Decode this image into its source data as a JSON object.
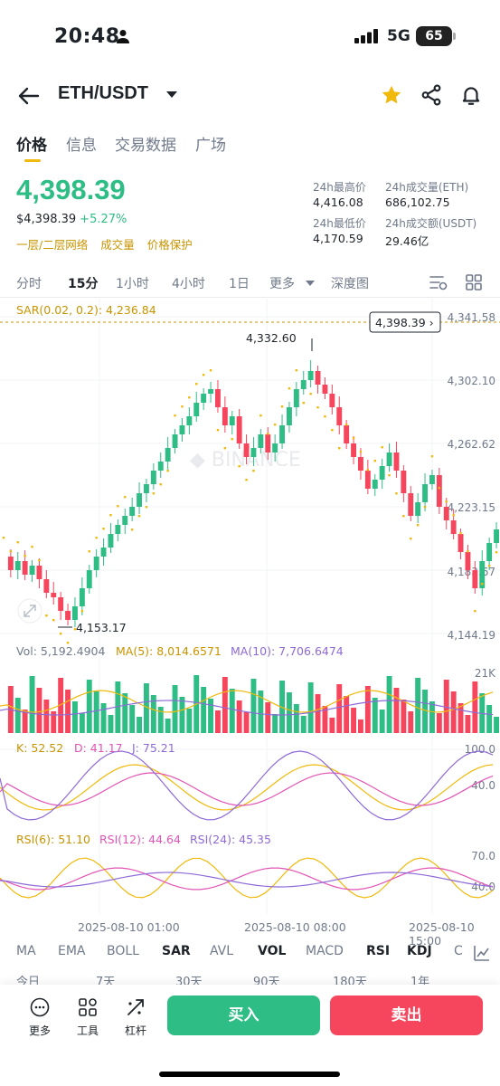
{
  "status": {
    "time": "20:48",
    "network": "5G",
    "battery": "65"
  },
  "nav": {
    "pair": "ETH/USDT"
  },
  "tabs": [
    "价格",
    "信息",
    "交易数据",
    "广场"
  ],
  "price": {
    "last": "4,398.39",
    "usd": "$4,398.39",
    "change": "+5.27%",
    "tags": [
      "一层/二层网络",
      "成交量",
      "价格保护"
    ]
  },
  "stats": {
    "high_label": "24h最高价",
    "high": "4,416.08",
    "low_label": "24h最低价",
    "low": "4,170.59",
    "vol_eth_label": "24h成交量(ETH)",
    "vol_eth": "686,102.75",
    "vol_usdt_label": "24h成交额(USDT)",
    "vol_usdt": "29.46亿"
  },
  "intervals": [
    "分时",
    "15分",
    "1小时",
    "4小时",
    "1日",
    "更多",
    "深度图"
  ],
  "chart": {
    "sar_label": "SAR(0.02, 0.2): 4,236.84",
    "current_price_tag": "4,398.39",
    "price_axis": [
      "4,341.58",
      "4,302.10",
      "4,262.62",
      "4,223.15",
      "4,183.67",
      "4,144.19"
    ],
    "high_marker": "4,332.60",
    "low_marker": "4,153.17",
    "watermark": "BINANCE",
    "vol_label": "Vol: 5,192.4904",
    "ma5_label": "MA(5): 8,014.6571",
    "ma10_label": "MA(10): 7,706.6474",
    "vol_axis": "21K",
    "k_label": "K: 52.52",
    "d_label": "D: 41.17",
    "j_label": "J: 75.21",
    "kdj_axis": [
      "100.0",
      "40.0"
    ],
    "rsi6_label": "RSI(6): 51.10",
    "rsi12_label": "RSI(12): 44.64",
    "rsi24_label": "RSI(24): 45.35",
    "rsi_axis": [
      "70.0",
      "40.0"
    ],
    "time_labels": [
      "2025-08-10 01:00",
      "2025-08-10 08:00",
      "2025-08-10 15:00"
    ],
    "colors": {
      "up": "#2ebd85",
      "down": "#f6465d",
      "sar": "#f0b90b",
      "ma5": "#f0b90b",
      "ma10": "#8e6ad8",
      "k": "#f0b90b",
      "d": "#e254b6",
      "j": "#8e6ad8"
    }
  },
  "indicators": [
    "MA",
    "EMA",
    "BOLL",
    "SAR",
    "AVL",
    "VOL",
    "MACD",
    "RSI",
    "KDJ",
    "C"
  ],
  "ranges": [
    "今日",
    "7天",
    "30天",
    "90天",
    "180天",
    "1年"
  ],
  "bottom": {
    "more": "更多",
    "tools": "工具",
    "leverage": "杠杆",
    "buy": "买入",
    "sell": "卖出"
  }
}
